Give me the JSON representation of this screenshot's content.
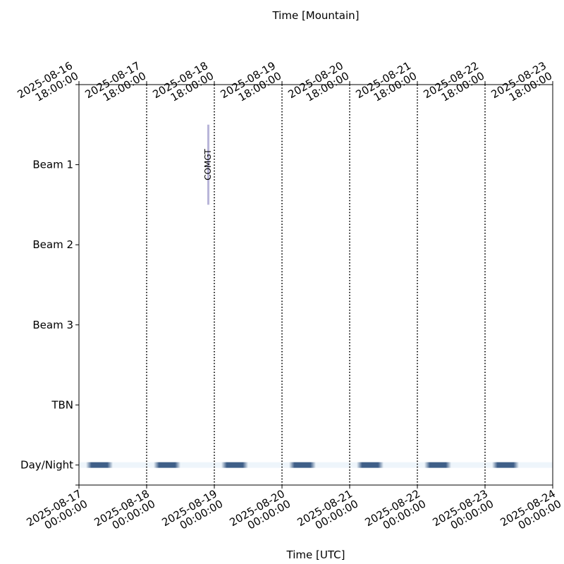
{
  "chart_data": {
    "type": "timeline",
    "xlabel": "Time [UTC]",
    "x2label": "Time [Mountain]",
    "xlim": [
      "2025-08-17 00:00:00",
      "2025-08-24 00:00:00"
    ],
    "xticks": [
      "2025-08-17 00:00:00",
      "2025-08-18 00:00:00",
      "2025-08-19 00:00:00",
      "2025-08-20 00:00:00",
      "2025-08-21 00:00:00",
      "2025-08-22 00:00:00",
      "2025-08-23 00:00:00",
      "2025-08-24 00:00:00"
    ],
    "x2ticks": [
      {
        "value": "2025-08-17 00:00:00",
        "label": "2025-08-16 18:00:00"
      },
      {
        "value": "2025-08-18 00:00:00",
        "label": "2025-08-17 18:00:00"
      },
      {
        "value": "2025-08-19 00:00:00",
        "label": "2025-08-18 18:00:00"
      },
      {
        "value": "2025-08-20 00:00:00",
        "label": "2025-08-19 18:00:00"
      },
      {
        "value": "2025-08-21 00:00:00",
        "label": "2025-08-20 18:00:00"
      },
      {
        "value": "2025-08-22 00:00:00",
        "label": "2025-08-21 18:00:00"
      },
      {
        "value": "2025-08-23 00:00:00",
        "label": "2025-08-22 18:00:00"
      },
      {
        "value": "2025-08-24 00:00:00",
        "label": "2025-08-23 18:00:00"
      }
    ],
    "ylim": [
      0,
      5
    ],
    "yticks": [
      {
        "value": 0,
        "label": null
      },
      {
        "value": 0.25,
        "label": "Day/Night"
      },
      {
        "value": 1,
        "label": "TBN"
      },
      {
        "value": 2,
        "label": "Beam 3"
      },
      {
        "value": 3,
        "label": "Beam 2"
      },
      {
        "value": 4,
        "label": "Beam 1"
      },
      {
        "value": 5,
        "label": null
      }
    ],
    "vlines": [
      "2025-08-18 00:00:00",
      "2025-08-19 00:00:00",
      "2025-08-20 00:00:00",
      "2025-08-21 00:00:00",
      "2025-08-22 00:00:00",
      "2025-08-23 00:00:00"
    ],
    "day_night": {
      "y": 0.25,
      "day_color": "#eef5fb",
      "night_color": "#3f5f88",
      "nights": [
        {
          "start": "2025-08-17 02:30:00",
          "end": "2025-08-17 12:00:00"
        },
        {
          "start": "2025-08-18 02:30:00",
          "end": "2025-08-18 12:00:00"
        },
        {
          "start": "2025-08-19 02:30:00",
          "end": "2025-08-19 12:00:00"
        },
        {
          "start": "2025-08-20 02:30:00",
          "end": "2025-08-20 12:00:00"
        },
        {
          "start": "2025-08-21 02:30:00",
          "end": "2025-08-21 12:00:00"
        },
        {
          "start": "2025-08-22 02:30:00",
          "end": "2025-08-22 12:00:00"
        },
        {
          "start": "2025-08-23 02:30:00",
          "end": "2025-08-23 12:00:00"
        }
      ]
    },
    "events": [
      {
        "name": "COMGT",
        "start": "2025-08-18 21:30:00",
        "end": "2025-08-18 22:15:00",
        "y": 4,
        "height": 1,
        "color": "#b9b5d9"
      }
    ]
  }
}
